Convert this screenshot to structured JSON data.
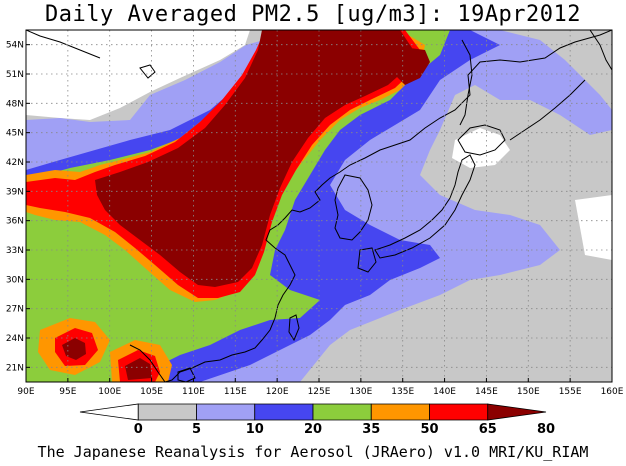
{
  "title": "Daily Averaged PM2.5 [ug/m3]: 19Apr2012",
  "footer": "The Japanese Reanalysis for Aerosol (JRAero) v1.0 MRI/KU_RIAM",
  "map": {
    "lon_range": [
      90,
      160
    ],
    "lat_range": [
      19.5,
      55.5
    ],
    "lon_ticks": [
      90,
      95,
      100,
      105,
      110,
      115,
      120,
      125,
      130,
      135,
      140,
      145,
      150,
      155,
      160
    ],
    "lat_ticks": [
      21,
      24,
      27,
      30,
      33,
      36,
      39,
      42,
      45,
      48,
      51,
      54
    ],
    "lon_tick_labels": [
      "90E",
      "95E",
      "100E",
      "105E",
      "110E",
      "115E",
      "120E",
      "125E",
      "130E",
      "135E",
      "140E",
      "145E",
      "150E",
      "155E",
      "160E"
    ],
    "lat_tick_labels": [
      "21N",
      "24N",
      "27N",
      "30N",
      "33N",
      "36N",
      "39N",
      "42N",
      "45N",
      "48N",
      "51N",
      "54N"
    ],
    "grid": true
  },
  "colorbar": {
    "levels": [
      "0",
      "5",
      "10",
      "20",
      "35",
      "50",
      "65",
      "80"
    ],
    "colors": [
      "#ffffff",
      "#c8c8c8",
      "#a0a0f5",
      "#4646f0",
      "#8ccd3c",
      "#ff9600",
      "#ff0000",
      "#8b0000"
    ]
  }
}
